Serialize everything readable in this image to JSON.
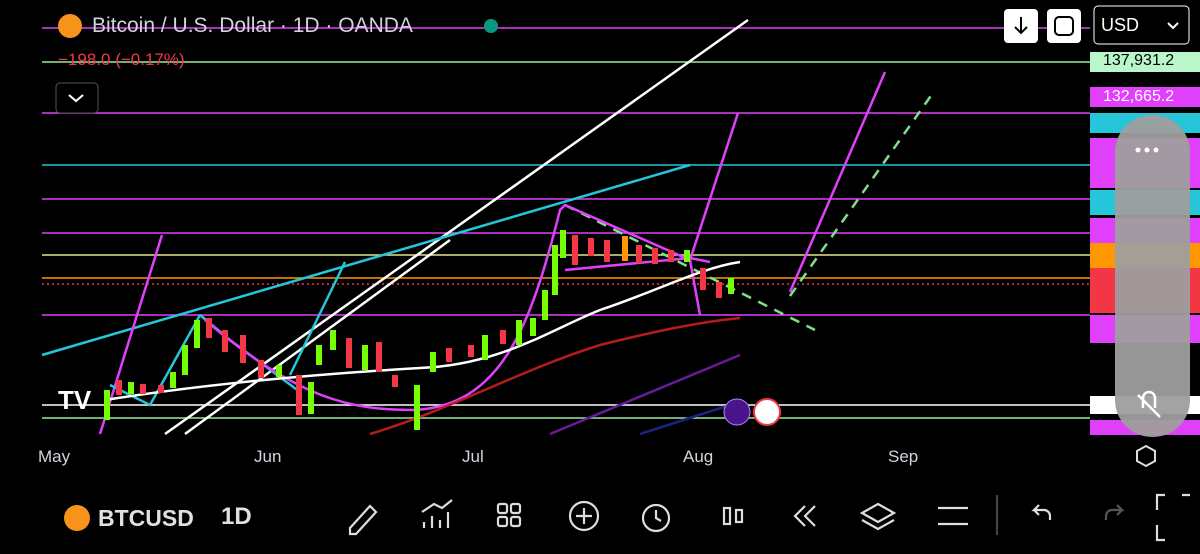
{
  "header": {
    "title": "Bitcoin / U.S. Dollar · 1D · OANDA",
    "change": "−198.0 (−0.17%)",
    "currency": "USD"
  },
  "price_axis": [
    "137,931.2",
    "132,665.2"
  ],
  "time_axis": [
    "May",
    "Jun",
    "Jul",
    "Aug",
    "Sep"
  ],
  "toolbar": {
    "symbol": "BTCUSD",
    "interval": "1D"
  }
}
